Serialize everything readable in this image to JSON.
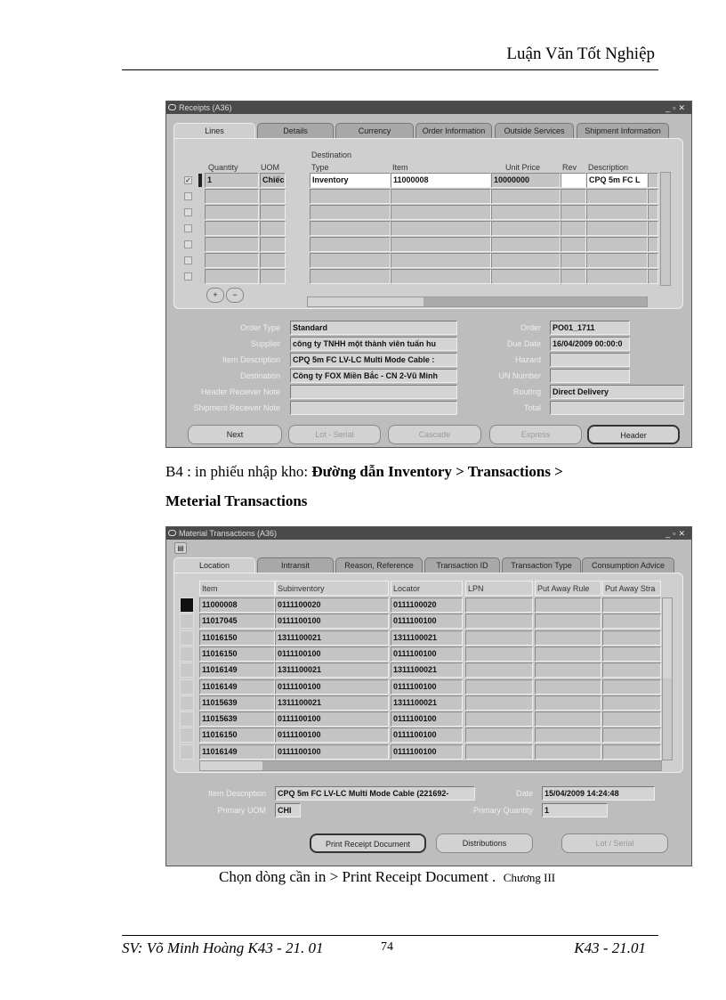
{
  "page": {
    "header": "Luận Văn Tốt Nghiệp",
    "step_prefix": "B4 : in phiếu nhập kho: ",
    "step_bold": "Đường dẫn Inventory > Transactions >",
    "step_line2": "Meterial Transactions",
    "caption_main": "Chọn dòng cần in > Print Receipt Document .",
    "caption_chapter": "Chương III",
    "footer_left": "SV: Võ Minh Hoàng K43 - 21. 01",
    "page_number": "74",
    "footer_right": "K43 - 21.01"
  },
  "receipts": {
    "title": "Receipts (A36)",
    "tabs": [
      "Lines",
      "Details",
      "Currency",
      "Order Information",
      "Outside Services",
      "Shipment Information"
    ],
    "columns": {
      "quantity": "Quantity",
      "uom": "UOM",
      "dest_top": "Destination",
      "dest_type": "Type",
      "item": "Item",
      "unit_price": "Unit Price",
      "rev": "Rev",
      "description": "Description"
    },
    "row": {
      "checked": true,
      "quantity": "1",
      "uom": "Chiếc",
      "dest_type": "Inventory",
      "item": "11000008",
      "unit_price": "10000000",
      "rev": "",
      "description": "CPQ 5m FC L"
    },
    "fields": {
      "order_type_label": "Order Type",
      "order_type": "Standard",
      "supplier_label": "Supplier",
      "supplier": "công ty TNHH một thành viên tuấn hu",
      "item_desc_label": "Item Description",
      "item_desc": "CPQ 5m FC LV-LC Multi Mode Cable :",
      "destination_label": "Destination",
      "destination": "Công ty FOX Miền Bắc - CN 2-Vũ Minh",
      "header_note_label": "Header Receiver Note",
      "header_note": "",
      "shipment_note_label": "Shipment Receiver Note",
      "shipment_note": "",
      "order_label": "Order",
      "order": "PO01_1711",
      "due_date_label": "Due Date",
      "due_date": "16/04/2009 00:00:0",
      "hazard_label": "Hazard",
      "hazard": "",
      "un_label": "UN Number",
      "un": "",
      "routing_label": "Routing",
      "routing": "Direct Delivery",
      "total_label": "Total",
      "total": ""
    },
    "buttons": {
      "next": "Next",
      "lot_serial": "Lot - Serial",
      "cascade": "Cascade",
      "express": "Express",
      "header": "Header"
    }
  },
  "material": {
    "title": "Material Transactions (A36)",
    "tabs": [
      "Location",
      "Intransit",
      "Reason, Reference",
      "Transaction ID",
      "Transaction Type",
      "Consumption Advice"
    ],
    "columns": [
      "Item",
      "Subinventory",
      "Locator",
      "LPN",
      "Put Away Rule",
      "Put Away Stra"
    ],
    "rows": [
      [
        "11000008",
        "0111100020",
        "0111100020"
      ],
      [
        "11017045",
        "0111100100",
        "0111100100"
      ],
      [
        "11016150",
        "1311100021",
        "1311100021"
      ],
      [
        "11016150",
        "0111100100",
        "0111100100"
      ],
      [
        "11016149",
        "1311100021",
        "1311100021"
      ],
      [
        "11016149",
        "0111100100",
        "0111100100"
      ],
      [
        "11015639",
        "1311100021",
        "1311100021"
      ],
      [
        "11015639",
        "0111100100",
        "0111100100"
      ],
      [
        "11016150",
        "0111100100",
        "0111100100"
      ],
      [
        "11016149",
        "0111100100",
        "0111100100"
      ]
    ],
    "fields": {
      "item_desc_label": "Item Description",
      "item_desc": "CPQ 5m FC LV-LC Multi Mode Cable (221692-",
      "uom_label": "Primary UOM",
      "uom": "CHI",
      "date_label": "Date",
      "date": "15/04/2009 14:24:48",
      "qty_label": "Primary Quantity",
      "qty": "1"
    },
    "buttons": {
      "print": "Print Receipt Document",
      "distributions": "Distributions",
      "lot_serial": "Lot / Serial"
    }
  }
}
